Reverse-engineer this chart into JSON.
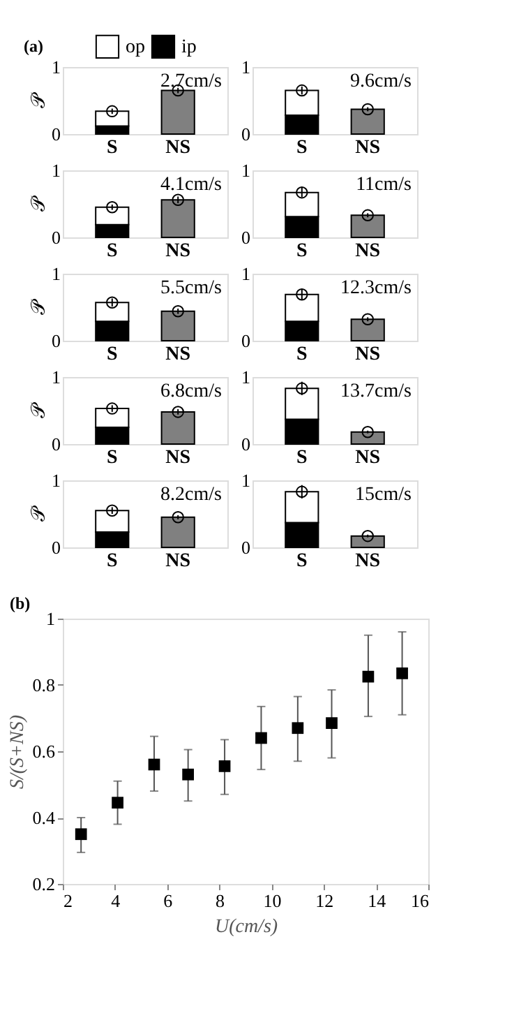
{
  "chart_data": [
    {
      "type": "bar",
      "stacked": true,
      "title": "2.7cm/s",
      "annotations": [
        "(a)"
      ],
      "ylabel": "𝒫",
      "categories": [
        "S",
        "NS"
      ],
      "ylim": [
        0,
        1
      ],
      "yticks": [
        0,
        1
      ],
      "grid": false,
      "legend": "top right",
      "series": [
        {
          "name": "ip",
          "color": "#000000",
          "values": [
            0.12,
            null
          ]
        },
        {
          "name": "op",
          "color": "#ffffff",
          "values": [
            0.22,
            null
          ]
        },
        {
          "color": "#808080",
          "values": [
            null,
            0.65
          ]
        },
        {
          "type": "scatter",
          "marker": "circle",
          "color": "#000000",
          "values": [
            0.34,
            0.65
          ],
          "errors": [
            0.04,
            0.04
          ]
        }
      ]
    },
    {
      "type": "bar",
      "stacked": true,
      "title": "9.6cm/s",
      "categories": [
        "S",
        "NS"
      ],
      "ylim": [
        0,
        1
      ],
      "yticks": [
        0,
        1
      ],
      "grid": false,
      "series": [
        {
          "name": "ip",
          "color": "#000000",
          "values": [
            0.28,
            null
          ]
        },
        {
          "name": "op",
          "color": "#ffffff",
          "values": [
            0.37,
            null
          ]
        },
        {
          "color": "#808080",
          "values": [
            null,
            0.37
          ]
        },
        {
          "type": "scatter",
          "marker": "circle",
          "color": "#000000",
          "values": [
            0.65,
            0.37
          ],
          "errors": [
            0.06,
            0.03
          ]
        }
      ]
    },
    {
      "type": "bar",
      "stacked": true,
      "title": "4.1cm/s",
      "ylabel": "𝒫",
      "categories": [
        "S",
        "NS"
      ],
      "ylim": [
        0,
        1
      ],
      "yticks": [
        0,
        1
      ],
      "grid": false,
      "series": [
        {
          "name": "ip",
          "color": "#000000",
          "values": [
            0.19,
            null
          ]
        },
        {
          "name": "op",
          "color": "#ffffff",
          "values": [
            0.26,
            null
          ]
        },
        {
          "color": "#808080",
          "values": [
            null,
            0.56
          ]
        },
        {
          "type": "scatter",
          "marker": "circle",
          "color": "#000000",
          "values": [
            0.45,
            0.56
          ],
          "errors": [
            0.04,
            0.05
          ]
        }
      ]
    },
    {
      "type": "bar",
      "stacked": true,
      "title": "11cm/s",
      "categories": [
        "S",
        "NS"
      ],
      "ylim": [
        0,
        1
      ],
      "yticks": [
        0,
        1
      ],
      "grid": false,
      "series": [
        {
          "name": "ip",
          "color": "#000000",
          "values": [
            0.31,
            null
          ]
        },
        {
          "name": "op",
          "color": "#ffffff",
          "values": [
            0.36,
            null
          ]
        },
        {
          "color": "#808080",
          "values": [
            null,
            0.33
          ]
        },
        {
          "type": "scatter",
          "marker": "circle",
          "color": "#000000",
          "values": [
            0.67,
            0.33
          ],
          "errors": [
            0.07,
            0.03
          ]
        }
      ]
    },
    {
      "type": "bar",
      "stacked": true,
      "title": "5.5cm/s",
      "ylabel": "𝒫",
      "categories": [
        "S",
        "NS"
      ],
      "ylim": [
        0,
        1
      ],
      "yticks": [
        0,
        1
      ],
      "grid": false,
      "series": [
        {
          "name": "ip",
          "color": "#000000",
          "values": [
            0.29,
            null
          ]
        },
        {
          "name": "op",
          "color": "#ffffff",
          "values": [
            0.28,
            null
          ]
        },
        {
          "color": "#808080",
          "values": [
            null,
            0.44
          ]
        },
        {
          "type": "scatter",
          "marker": "circle",
          "color": "#000000",
          "values": [
            0.57,
            0.44
          ],
          "errors": [
            0.06,
            0.04
          ]
        }
      ]
    },
    {
      "type": "bar",
      "stacked": true,
      "title": "12.3cm/s",
      "categories": [
        "S",
        "NS"
      ],
      "ylim": [
        0,
        1
      ],
      "yticks": [
        0,
        1
      ],
      "grid": false,
      "series": [
        {
          "name": "ip",
          "color": "#000000",
          "values": [
            0.29,
            null
          ]
        },
        {
          "name": "op",
          "color": "#ffffff",
          "values": [
            0.4,
            null
          ]
        },
        {
          "color": "#808080",
          "values": [
            null,
            0.32
          ]
        },
        {
          "type": "scatter",
          "marker": "circle",
          "color": "#000000",
          "values": [
            0.69,
            0.32
          ],
          "errors": [
            0.08,
            0.03
          ]
        }
      ]
    },
    {
      "type": "bar",
      "stacked": true,
      "title": "6.8cm/s",
      "ylabel": "𝒫",
      "categories": [
        "S",
        "NS"
      ],
      "ylim": [
        0,
        1
      ],
      "yticks": [
        0,
        1
      ],
      "grid": false,
      "series": [
        {
          "name": "ip",
          "color": "#000000",
          "values": [
            0.25,
            null
          ]
        },
        {
          "name": "op",
          "color": "#ffffff",
          "values": [
            0.28,
            null
          ]
        },
        {
          "color": "#808080",
          "values": [
            null,
            0.48
          ]
        },
        {
          "type": "scatter",
          "marker": "circle",
          "color": "#000000",
          "values": [
            0.53,
            0.48
          ],
          "errors": [
            0.05,
            0.04
          ]
        }
      ]
    },
    {
      "type": "bar",
      "stacked": true,
      "title": "13.7cm/s",
      "categories": [
        "S",
        "NS"
      ],
      "ylim": [
        0,
        1
      ],
      "yticks": [
        0,
        1
      ],
      "grid": false,
      "series": [
        {
          "name": "ip",
          "color": "#000000",
          "values": [
            0.37,
            null
          ]
        },
        {
          "name": "op",
          "color": "#ffffff",
          "values": [
            0.46,
            null
          ]
        },
        {
          "color": "#808080",
          "values": [
            null,
            0.18
          ]
        },
        {
          "type": "scatter",
          "marker": "circle",
          "color": "#000000",
          "values": [
            0.83,
            0.18
          ],
          "errors": [
            0.1,
            0.02
          ]
        }
      ]
    },
    {
      "type": "bar",
      "stacked": true,
      "title": "8.2cm/s",
      "ylabel": "𝒫",
      "categories": [
        "S",
        "NS"
      ],
      "ylim": [
        0,
        1
      ],
      "yticks": [
        0,
        1
      ],
      "grid": false,
      "series": [
        {
          "name": "ip",
          "color": "#000000",
          "values": [
            0.23,
            null
          ]
        },
        {
          "name": "op",
          "color": "#ffffff",
          "values": [
            0.32,
            null
          ]
        },
        {
          "color": "#808080",
          "values": [
            null,
            0.45
          ]
        },
        {
          "type": "scatter",
          "marker": "circle",
          "color": "#000000",
          "values": [
            0.55,
            0.45
          ],
          "errors": [
            0.05,
            0.03
          ]
        }
      ]
    },
    {
      "type": "bar",
      "stacked": true,
      "title": "15cm/s",
      "categories": [
        "S",
        "NS"
      ],
      "ylim": [
        0,
        1
      ],
      "yticks": [
        0,
        1
      ],
      "grid": false,
      "series": [
        {
          "name": "ip",
          "color": "#000000",
          "values": [
            0.37,
            null
          ]
        },
        {
          "name": "op",
          "color": "#ffffff",
          "values": [
            0.46,
            null
          ]
        },
        {
          "color": "#808080",
          "values": [
            null,
            0.17
          ]
        },
        {
          "type": "scatter",
          "marker": "circle",
          "color": "#000000",
          "values": [
            0.83,
            0.17
          ],
          "errors": [
            0.1,
            0.02
          ]
        }
      ]
    },
    {
      "type": "scatter",
      "annotations": [
        "(b)"
      ],
      "xlabel": "U(cm/s)",
      "ylabel": "S/(S+NS)",
      "xlim": [
        2,
        16
      ],
      "xticks": [
        2,
        4,
        6,
        8,
        10,
        12,
        14,
        16
      ],
      "ylim": [
        0.2,
        1
      ],
      "yticks": [
        0.2,
        0.4,
        0.6,
        0.8,
        1
      ],
      "grid": false,
      "marker": "square",
      "color": "#000000",
      "x": [
        2.7,
        4.1,
        5.5,
        6.8,
        8.2,
        9.6,
        11,
        12.3,
        13.7,
        15
      ],
      "values": [
        0.35,
        0.445,
        0.56,
        0.53,
        0.555,
        0.64,
        0.67,
        0.685,
        0.825,
        0.835
      ],
      "errors": [
        [
          0.295,
          0.4
        ],
        [
          0.38,
          0.51
        ],
        [
          0.48,
          0.645
        ],
        [
          0.45,
          0.605
        ],
        [
          0.47,
          0.635
        ],
        [
          0.545,
          0.735
        ],
        [
          0.57,
          0.765
        ],
        [
          0.58,
          0.785
        ],
        [
          0.705,
          0.95
        ],
        [
          0.71,
          0.96
        ]
      ]
    }
  ]
}
